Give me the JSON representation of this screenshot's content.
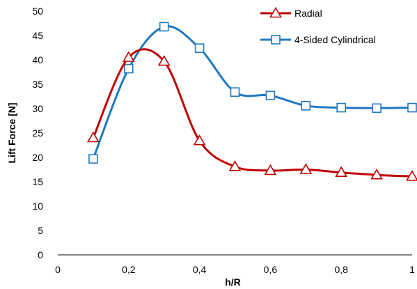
{
  "chart_data": {
    "type": "line",
    "title": "",
    "xlabel": "h/R",
    "ylabel": "Lift Force [N]",
    "xlim": [
      0,
      1
    ],
    "ylim": [
      0,
      50
    ],
    "x_ticks": [
      0,
      0.2,
      0.4,
      0.6,
      0.8,
      1
    ],
    "x_tick_labels": [
      "0",
      "0,2",
      "0,4",
      "0,6",
      "0,8",
      "1"
    ],
    "y_ticks": [
      0,
      5,
      10,
      15,
      20,
      25,
      30,
      35,
      40,
      45,
      50
    ],
    "y_tick_labels": [
      "0",
      "5",
      "10",
      "15",
      "20",
      "25",
      "30",
      "35",
      "40",
      "45",
      "50"
    ],
    "grid": false,
    "legend_position": "top-right",
    "smooth": true,
    "x": [
      0.1,
      0.2,
      0.3,
      0.4,
      0.5,
      0.6,
      0.7,
      0.8,
      0.9,
      1.0
    ],
    "series": [
      {
        "name": "Radial",
        "color": "#C00000",
        "marker": "triangle",
        "values": [
          24.0,
          40.5,
          39.7,
          23.4,
          18.1,
          17.3,
          17.5,
          16.9,
          16.4,
          16.1
        ]
      },
      {
        "name": "4-Sided Cylindrical",
        "color": "#1F78C1",
        "marker": "square",
        "values": [
          19.7,
          38.2,
          46.8,
          42.4,
          33.4,
          32.7,
          30.6,
          30.2,
          30.1,
          30.2
        ]
      }
    ]
  }
}
